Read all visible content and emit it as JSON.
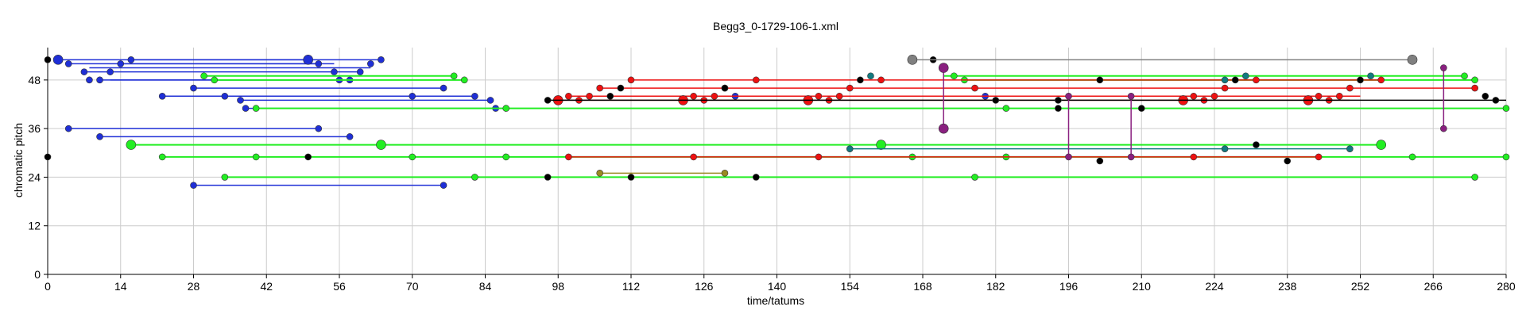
{
  "chart_data": {
    "type": "scatter",
    "title": "Begg3_0-1729-106-1.xml",
    "xlabel": "time/tatums",
    "ylabel": "chromatic pitch",
    "xlim": [
      0,
      280
    ],
    "ylim": [
      0,
      56
    ],
    "x_ticks": [
      0,
      14,
      28,
      42,
      56,
      70,
      84,
      98,
      112,
      126,
      140,
      154,
      168,
      182,
      196,
      210,
      224,
      238,
      252,
      266,
      280
    ],
    "y_ticks": [
      0,
      12,
      24,
      36,
      48
    ],
    "grid": true,
    "colors": {
      "blue": "#1f2fd6",
      "green": "#22ee22",
      "red": "#ee1111",
      "black": "#000000",
      "gray": "#808080",
      "olive": "#9a8a22",
      "teal": "#127a80",
      "purple": "#8a2080",
      "grid": "#cccccc"
    },
    "series": [
      {
        "color": "blue",
        "segments": [
          {
            "x1": 2,
            "x2": 50,
            "y": 53
          },
          {
            "x1": 4,
            "x2": 52,
            "y": 52
          },
          {
            "x1": 7,
            "x2": 60,
            "y": 50
          },
          {
            "x1": 8,
            "x2": 62,
            "y": 51
          },
          {
            "x1": 10,
            "x2": 56,
            "y": 48
          },
          {
            "x1": 12,
            "x2": 58,
            "y": 48
          },
          {
            "x1": 16,
            "x2": 64,
            "y": 53
          },
          {
            "x1": 14,
            "x2": 55,
            "y": 52
          },
          {
            "x1": 28,
            "x2": 76,
            "y": 46
          },
          {
            "x1": 22,
            "x2": 70,
            "y": 44
          },
          {
            "x1": 34,
            "x2": 82,
            "y": 44
          },
          {
            "x1": 37,
            "x2": 85,
            "y": 43
          },
          {
            "x1": 38,
            "x2": 86,
            "y": 41
          },
          {
            "x1": 4,
            "x2": 52,
            "y": 36
          },
          {
            "x1": 10,
            "x2": 58,
            "y": 34
          },
          {
            "x1": 28,
            "x2": 76,
            "y": 22
          }
        ],
        "points": [
          {
            "x": 2,
            "y": 53,
            "size": "large"
          },
          {
            "x": 50,
            "y": 53,
            "size": "large"
          },
          {
            "x": 64,
            "y": 53
          },
          {
            "x": 16,
            "y": 53
          },
          {
            "x": 4,
            "y": 52
          },
          {
            "x": 14,
            "y": 52
          },
          {
            "x": 52,
            "y": 52
          },
          {
            "x": 62,
            "y": 52
          },
          {
            "x": 7,
            "y": 50
          },
          {
            "x": 12,
            "y": 50
          },
          {
            "x": 55,
            "y": 50
          },
          {
            "x": 60,
            "y": 50
          },
          {
            "x": 8,
            "y": 48
          },
          {
            "x": 10,
            "y": 48
          },
          {
            "x": 56,
            "y": 48
          },
          {
            "x": 58,
            "y": 48
          },
          {
            "x": 28,
            "y": 46
          },
          {
            "x": 76,
            "y": 46
          },
          {
            "x": 22,
            "y": 44
          },
          {
            "x": 34,
            "y": 44
          },
          {
            "x": 70,
            "y": 44
          },
          {
            "x": 82,
            "y": 44
          },
          {
            "x": 37,
            "y": 43
          },
          {
            "x": 85,
            "y": 43
          },
          {
            "x": 38,
            "y": 41
          },
          {
            "x": 86,
            "y": 41
          },
          {
            "x": 4,
            "y": 36
          },
          {
            "x": 52,
            "y": 36
          },
          {
            "x": 10,
            "y": 34
          },
          {
            "x": 58,
            "y": 34
          },
          {
            "x": 28,
            "y": 22
          },
          {
            "x": 76,
            "y": 22
          },
          {
            "x": 180,
            "y": 44
          },
          {
            "x": 132,
            "y": 44
          }
        ]
      },
      {
        "color": "green",
        "segments": [
          {
            "x1": 30,
            "x2": 78,
            "y": 49
          },
          {
            "x1": 32,
            "x2": 80,
            "y": 48
          },
          {
            "x1": 40,
            "x2": 88,
            "y": 41
          },
          {
            "x1": 16,
            "x2": 64,
            "y": 32
          },
          {
            "x1": 64,
            "x2": 160,
            "y": 32
          },
          {
            "x1": 160,
            "x2": 256,
            "y": 32
          },
          {
            "x1": 22,
            "x2": 70,
            "y": 29
          },
          {
            "x1": 70,
            "x2": 166,
            "y": 29
          },
          {
            "x1": 166,
            "x2": 280,
            "y": 29
          },
          {
            "x1": 34,
            "x2": 82,
            "y": 24
          },
          {
            "x1": 82,
            "x2": 178,
            "y": 24
          },
          {
            "x1": 178,
            "x2": 274,
            "y": 24
          },
          {
            "x1": 172,
            "x2": 272,
            "y": 49
          },
          {
            "x1": 176,
            "x2": 274,
            "y": 48
          },
          {
            "x1": 88,
            "x2": 184,
            "y": 41
          },
          {
            "x1": 184,
            "x2": 280,
            "y": 41
          }
        ],
        "points": [
          {
            "x": 30,
            "y": 49
          },
          {
            "x": 78,
            "y": 49
          },
          {
            "x": 32,
            "y": 48
          },
          {
            "x": 80,
            "y": 48
          },
          {
            "x": 40,
            "y": 41
          },
          {
            "x": 88,
            "y": 41
          },
          {
            "x": 16,
            "y": 32,
            "size": "large"
          },
          {
            "x": 64,
            "y": 32,
            "size": "large"
          },
          {
            "x": 160,
            "y": 32,
            "size": "large"
          },
          {
            "x": 256,
            "y": 32,
            "size": "large"
          },
          {
            "x": 22,
            "y": 29
          },
          {
            "x": 40,
            "y": 29
          },
          {
            "x": 70,
            "y": 29
          },
          {
            "x": 88,
            "y": 29
          },
          {
            "x": 166,
            "y": 29
          },
          {
            "x": 184,
            "y": 29
          },
          {
            "x": 262,
            "y": 29
          },
          {
            "x": 280,
            "y": 29
          },
          {
            "x": 34,
            "y": 24
          },
          {
            "x": 82,
            "y": 24
          },
          {
            "x": 178,
            "y": 24
          },
          {
            "x": 274,
            "y": 24
          },
          {
            "x": 174,
            "y": 49
          },
          {
            "x": 272,
            "y": 49
          },
          {
            "x": 176,
            "y": 48
          },
          {
            "x": 274,
            "y": 48
          },
          {
            "x": 184,
            "y": 41
          },
          {
            "x": 280,
            "y": 41
          }
        ]
      },
      {
        "color": "red",
        "segments": [
          {
            "x1": 106,
            "x2": 274,
            "y": 46
          },
          {
            "x1": 112,
            "x2": 256,
            "y": 48
          },
          {
            "x1": 98,
            "x2": 250,
            "y": 43
          },
          {
            "x1": 100,
            "x2": 252,
            "y": 44
          },
          {
            "x1": 100,
            "x2": 244,
            "y": 29
          }
        ],
        "points": [
          {
            "x": 98,
            "y": 43,
            "size": "large"
          },
          {
            "x": 100,
            "y": 44
          },
          {
            "x": 102,
            "y": 43
          },
          {
            "x": 104,
            "y": 44
          },
          {
            "x": 106,
            "y": 46
          },
          {
            "x": 112,
            "y": 48
          },
          {
            "x": 122,
            "y": 43,
            "size": "large"
          },
          {
            "x": 124,
            "y": 44
          },
          {
            "x": 126,
            "y": 43
          },
          {
            "x": 128,
            "y": 44
          },
          {
            "x": 130,
            "y": 46
          },
          {
            "x": 136,
            "y": 48
          },
          {
            "x": 146,
            "y": 43,
            "size": "large"
          },
          {
            "x": 148,
            "y": 44
          },
          {
            "x": 150,
            "y": 43
          },
          {
            "x": 152,
            "y": 44
          },
          {
            "x": 154,
            "y": 46
          },
          {
            "x": 160,
            "y": 48
          },
          {
            "x": 178,
            "y": 46
          },
          {
            "x": 218,
            "y": 43,
            "size": "large"
          },
          {
            "x": 220,
            "y": 44
          },
          {
            "x": 222,
            "y": 43
          },
          {
            "x": 224,
            "y": 44
          },
          {
            "x": 226,
            "y": 46
          },
          {
            "x": 232,
            "y": 48
          },
          {
            "x": 242,
            "y": 43,
            "size": "large"
          },
          {
            "x": 244,
            "y": 44
          },
          {
            "x": 246,
            "y": 43
          },
          {
            "x": 248,
            "y": 44
          },
          {
            "x": 250,
            "y": 46
          },
          {
            "x": 256,
            "y": 48
          },
          {
            "x": 274,
            "y": 46
          },
          {
            "x": 100,
            "y": 29
          },
          {
            "x": 124,
            "y": 29
          },
          {
            "x": 148,
            "y": 29
          },
          {
            "x": 220,
            "y": 29
          },
          {
            "x": 244,
            "y": 29
          }
        ]
      },
      {
        "color": "black",
        "segments": [
          {
            "x1": 96,
            "x2": 280,
            "y": 43
          }
        ],
        "points": [
          {
            "x": 0,
            "y": 53
          },
          {
            "x": 0,
            "y": 29
          },
          {
            "x": 50,
            "y": 29
          },
          {
            "x": 96,
            "y": 43
          },
          {
            "x": 96,
            "y": 24
          },
          {
            "x": 108,
            "y": 44
          },
          {
            "x": 110,
            "y": 46
          },
          {
            "x": 112,
            "y": 24
          },
          {
            "x": 130,
            "y": 46
          },
          {
            "x": 136,
            "y": 24
          },
          {
            "x": 156,
            "y": 48
          },
          {
            "x": 170,
            "y": 53
          },
          {
            "x": 182,
            "y": 43
          },
          {
            "x": 194,
            "y": 43
          },
          {
            "x": 194,
            "y": 41
          },
          {
            "x": 202,
            "y": 48
          },
          {
            "x": 202,
            "y": 28
          },
          {
            "x": 210,
            "y": 41
          },
          {
            "x": 228,
            "y": 48
          },
          {
            "x": 232,
            "y": 32
          },
          {
            "x": 238,
            "y": 28
          },
          {
            "x": 252,
            "y": 48
          },
          {
            "x": 276,
            "y": 44
          },
          {
            "x": 278,
            "y": 43
          }
        ]
      },
      {
        "color": "gray",
        "segments": [
          {
            "x1": 166,
            "x2": 262,
            "y": 53
          }
        ],
        "points": [
          {
            "x": 166,
            "y": 53,
            "size": "large"
          },
          {
            "x": 262,
            "y": 53,
            "size": "large"
          }
        ]
      },
      {
        "color": "olive",
        "segments": [
          {
            "x1": 106,
            "x2": 130,
            "y": 25
          }
        ],
        "points": [
          {
            "x": 106,
            "y": 25
          },
          {
            "x": 130,
            "y": 25
          }
        ]
      },
      {
        "color": "teal",
        "segments": [
          {
            "x1": 154,
            "x2": 250,
            "y": 31
          }
        ],
        "points": [
          {
            "x": 154,
            "y": 31
          },
          {
            "x": 226,
            "y": 31
          },
          {
            "x": 250,
            "y": 31
          },
          {
            "x": 158,
            "y": 49
          },
          {
            "x": 230,
            "y": 49
          },
          {
            "x": 254,
            "y": 49
          },
          {
            "x": 226,
            "y": 48
          }
        ]
      },
      {
        "color": "purple",
        "segments": [
          {
            "x1": 172,
            "x2": 172,
            "y1": 51,
            "y2": 36
          },
          {
            "x1": 196,
            "x2": 196,
            "y1": 44,
            "y2": 29
          },
          {
            "x1": 208,
            "x2": 208,
            "y1": 44,
            "y2": 29
          },
          {
            "x1": 268,
            "x2": 268,
            "y1": 51,
            "y2": 36
          }
        ],
        "points": [
          {
            "x": 172,
            "y": 51,
            "size": "large"
          },
          {
            "x": 172,
            "y": 36,
            "size": "large"
          },
          {
            "x": 196,
            "y": 44
          },
          {
            "x": 196,
            "y": 29
          },
          {
            "x": 208,
            "y": 44
          },
          {
            "x": 208,
            "y": 29
          },
          {
            "x": 268,
            "y": 51
          },
          {
            "x": 268,
            "y": 36
          }
        ]
      }
    ]
  }
}
